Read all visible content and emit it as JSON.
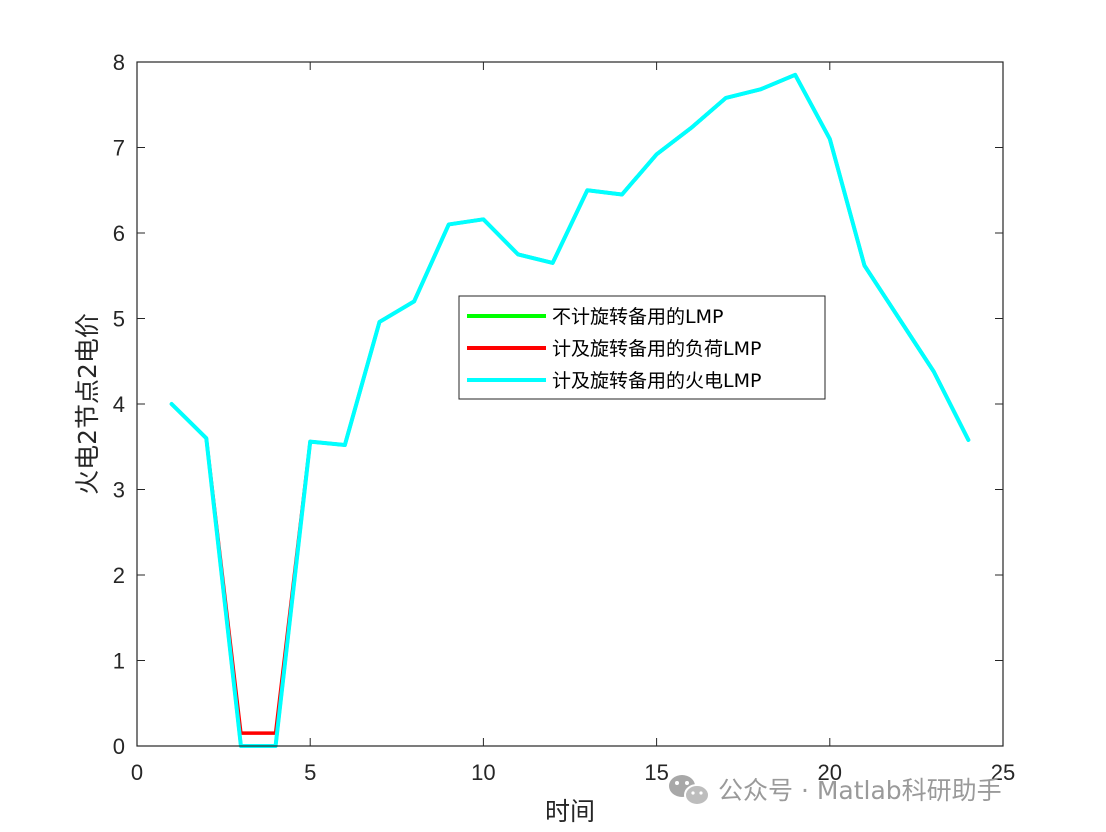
{
  "chart_data": {
    "type": "line",
    "xlabel": "时间",
    "ylabel": "火电2节点2电价",
    "xlim": [
      0,
      25
    ],
    "ylim": [
      0,
      8
    ],
    "xticks": [
      0,
      5,
      10,
      15,
      20,
      25
    ],
    "yticks": [
      0,
      1,
      2,
      3,
      4,
      5,
      6,
      7,
      8
    ],
    "grid": false,
    "legend_position": "center",
    "x": [
      1,
      2,
      3,
      4,
      5,
      6,
      7,
      8,
      9,
      10,
      11,
      12,
      13,
      14,
      15,
      16,
      17,
      18,
      19,
      20,
      21,
      22,
      23,
      24
    ],
    "series": [
      {
        "name": "不计旋转备用的LMP",
        "color": "#00ff00",
        "values": [
          4.0,
          3.6,
          0.0,
          0.0,
          3.56,
          3.52,
          4.96,
          5.2,
          6.1,
          6.16,
          5.75,
          5.65,
          6.5,
          6.45,
          6.92,
          7.23,
          7.58,
          7.68,
          7.85,
          7.1,
          5.62,
          5.0,
          4.38,
          3.58
        ]
      },
      {
        "name": "计及旋转备用的负荷LMP",
        "color": "#ff0000",
        "values": [
          4.0,
          3.6,
          0.15,
          0.15,
          3.56,
          3.52,
          4.96,
          5.2,
          6.1,
          6.16,
          5.75,
          5.65,
          6.5,
          6.45,
          6.92,
          7.23,
          7.58,
          7.68,
          7.85,
          7.1,
          5.62,
          5.0,
          4.38,
          3.58
        ]
      },
      {
        "name": "计及旋转备用的火电LMP",
        "color": "#00ffff",
        "values": [
          4.0,
          3.6,
          0.0,
          0.0,
          3.56,
          3.52,
          4.96,
          5.2,
          6.1,
          6.16,
          5.75,
          5.65,
          6.5,
          6.45,
          6.92,
          7.23,
          7.58,
          7.68,
          7.85,
          7.1,
          5.62,
          5.0,
          4.38,
          3.58
        ]
      }
    ]
  },
  "watermark": {
    "text": "公众号 · Matlab科研助手",
    "icon": "wechat-icon"
  },
  "colors": {
    "axis": "#262626",
    "background": "#ffffff",
    "watermark": "#9a9a9a"
  }
}
